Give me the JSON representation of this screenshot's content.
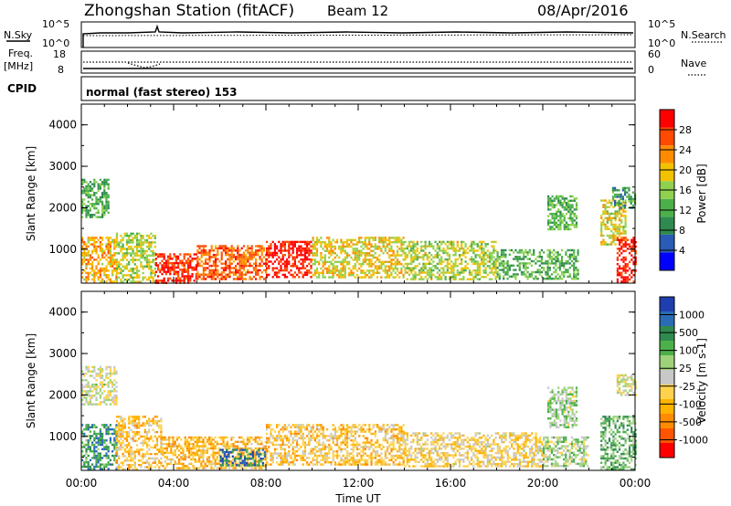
{
  "header": {
    "station": "Zhongshan Station (fitACF)",
    "beam": "Beam 12",
    "date": "08/Apr/2016"
  },
  "strip": {
    "nsky_label": "N.Sky",
    "nsky_top_tick": "10^5",
    "nsky_bottom_tick": "10^0",
    "nsearch_label": "N.Search",
    "nsearch_top_tick": "10^5",
    "nsearch_bottom_tick": "10^0",
    "freq_label": "Freq.",
    "freq_unit": "[MHz]",
    "freq_top_tick": "18",
    "freq_bottom_tick": "8",
    "nave_label": "Nave",
    "nave_top_tick": "60",
    "nave_bottom_tick": "0",
    "cpid_label": "CPID",
    "cpid_value": "normal (fast stereo) 153"
  },
  "colors": {
    "power_scale": [
      "#0000ff",
      "#2a5bb5",
      "#2f8a4f",
      "#4cb04a",
      "#8fd14f",
      "#f2c200",
      "#ff8c00",
      "#ff4a00",
      "#ff0000"
    ],
    "velocity_scale": [
      "#ff0000",
      "#ff5500",
      "#ff8c00",
      "#ffb300",
      "#ffd24d",
      "#c8c8c8",
      "#9ed37a",
      "#4cb04a",
      "#2f8a4f",
      "#2a6bb5",
      "#1f3fb0"
    ]
  },
  "chart_data": [
    {
      "type": "heatmap",
      "name": "power",
      "ylabel": "Slant Range [km]",
      "y_ticks": [
        "1000",
        "2000",
        "3000",
        "4000"
      ],
      "ylim": [
        180,
        4500
      ],
      "x_ticks": [
        "00:00",
        "04:00",
        "08:00",
        "12:00",
        "16:00",
        "20:00",
        "00:00"
      ],
      "colorbar_label": "Power [dB]",
      "colorbar_ticks": [
        "4",
        "8",
        "12",
        "16",
        "20",
        "24",
        "28"
      ],
      "zlim": [
        0,
        30
      ],
      "series": [
        {
          "x": [
            0,
            1.5
          ],
          "y": [
            200,
            1300
          ],
          "value": 20
        },
        {
          "x": [
            0,
            1.2
          ],
          "y": [
            1800,
            2700
          ],
          "value": 11
        },
        {
          "x": [
            1.5,
            3.2
          ],
          "y": [
            200,
            1400
          ],
          "value": 16
        },
        {
          "x": [
            3.2,
            5.0
          ],
          "y": [
            200,
            900
          ],
          "value": 27
        },
        {
          "x": [
            5.0,
            8.0
          ],
          "y": [
            300,
            1100
          ],
          "value": 24
        },
        {
          "x": [
            8.0,
            10.0
          ],
          "y": [
            350,
            1200
          ],
          "value": 28
        },
        {
          "x": [
            10.0,
            14.0
          ],
          "y": [
            300,
            1300
          ],
          "value": 18
        },
        {
          "x": [
            14.0,
            18.0
          ],
          "y": [
            300,
            1200
          ],
          "value": 16
        },
        {
          "x": [
            18.0,
            21.5
          ],
          "y": [
            300,
            1000
          ],
          "value": 12
        },
        {
          "x": [
            20.2,
            21.5
          ],
          "y": [
            1500,
            2300
          ],
          "value": 12
        },
        {
          "x": [
            22.5,
            23.6
          ],
          "y": [
            1100,
            2200
          ],
          "value": 17
        },
        {
          "x": [
            23.2,
            24.0
          ],
          "y": [
            200,
            1300
          ],
          "value": 28
        },
        {
          "x": [
            23.0,
            24.0
          ],
          "y": [
            2000,
            2500
          ],
          "value": 10
        }
      ]
    },
    {
      "type": "heatmap",
      "name": "velocity",
      "ylabel": "Slant Range [km]",
      "y_ticks": [
        "1000",
        "2000",
        "3000",
        "4000"
      ],
      "ylim": [
        180,
        4500
      ],
      "x_ticks": [
        "00:00",
        "04:00",
        "08:00",
        "12:00",
        "16:00",
        "20:00",
        "00:00"
      ],
      "xlabel": "Time UT",
      "colorbar_label": "Velocity [m s-1]",
      "colorbar_ticks": [
        "-1000",
        "-500",
        "-100",
        "-25",
        "25",
        "100",
        "500",
        "1000"
      ],
      "zlim": [
        -1200,
        1200
      ],
      "series": [
        {
          "x": [
            0,
            1.5
          ],
          "y": [
            1800,
            2700
          ],
          "value": 0
        },
        {
          "x": [
            0,
            1.5
          ],
          "y": [
            200,
            1300
          ],
          "value": 600
        },
        {
          "x": [
            1.5,
            3.5
          ],
          "y": [
            200,
            1500
          ],
          "value": -300
        },
        {
          "x": [
            3.5,
            8.0
          ],
          "y": [
            250,
            1000
          ],
          "value": -400
        },
        {
          "x": [
            6.0,
            8.0
          ],
          "y": [
            300,
            700
          ],
          "value": 800
        },
        {
          "x": [
            8.0,
            14.0
          ],
          "y": [
            300,
            1300
          ],
          "value": -300
        },
        {
          "x": [
            14.0,
            20.0
          ],
          "y": [
            300,
            1100
          ],
          "value": -200
        },
        {
          "x": [
            20.2,
            21.5
          ],
          "y": [
            1200,
            2200
          ],
          "value": 200
        },
        {
          "x": [
            20.0,
            22.0
          ],
          "y": [
            300,
            1000
          ],
          "value": 150
        },
        {
          "x": [
            22.5,
            24.0
          ],
          "y": [
            200,
            1500
          ],
          "value": 400
        },
        {
          "x": [
            23.2,
            24.0
          ],
          "y": [
            2000,
            2500
          ],
          "value": 0
        }
      ]
    }
  ]
}
